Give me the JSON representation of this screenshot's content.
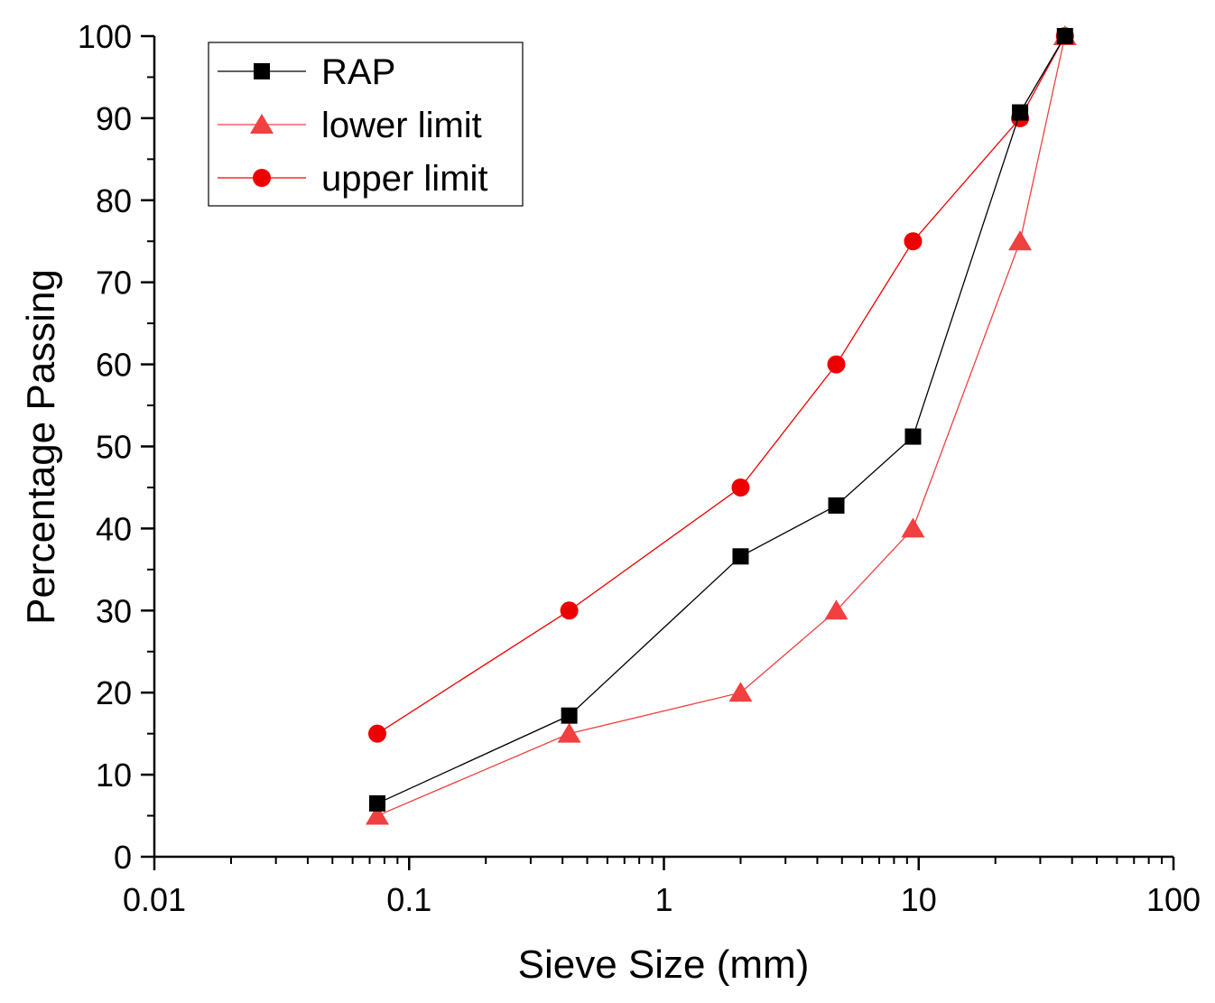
{
  "chart_data": {
    "type": "line",
    "xscale": "log",
    "xlim": [
      0.01,
      100
    ],
    "ylim": [
      0,
      100
    ],
    "xlabel": "Sieve Size (mm)",
    "ylabel": "Percentage Passing",
    "xticks": [
      {
        "value": 0.01,
        "label": "0.01"
      },
      {
        "value": 0.1,
        "label": "0.1"
      },
      {
        "value": 1,
        "label": "1"
      },
      {
        "value": 10,
        "label": "10"
      },
      {
        "value": 100,
        "label": "100"
      }
    ],
    "yticks": [
      {
        "value": 0,
        "label": "0"
      },
      {
        "value": 10,
        "label": "10"
      },
      {
        "value": 20,
        "label": "20"
      },
      {
        "value": 30,
        "label": "30"
      },
      {
        "value": 40,
        "label": "40"
      },
      {
        "value": 50,
        "label": "50"
      },
      {
        "value": 60,
        "label": "60"
      },
      {
        "value": 70,
        "label": "70"
      },
      {
        "value": 80,
        "label": "80"
      },
      {
        "value": 90,
        "label": "90"
      },
      {
        "value": 100,
        "label": "100"
      }
    ],
    "legend_position": "top-left",
    "series": [
      {
        "name": "RAP",
        "marker": "square",
        "color": "#000000",
        "x": [
          0.075,
          0.425,
          2,
          4.75,
          9.5,
          25,
          37.5
        ],
        "y": [
          6.5,
          17.2,
          36.6,
          42.8,
          51.2,
          90.7,
          100
        ]
      },
      {
        "name": "lower limit",
        "marker": "triangle",
        "color": "#f04040",
        "x": [
          0.075,
          0.425,
          2,
          4.75,
          9.5,
          25,
          37.5
        ],
        "y": [
          5,
          15,
          20,
          30,
          40,
          75,
          100
        ]
      },
      {
        "name": "upper limit",
        "marker": "circle",
        "color": "#ee0000",
        "x": [
          0.075,
          0.425,
          2,
          4.75,
          9.5,
          25,
          37.5
        ],
        "y": [
          15,
          30,
          45,
          60,
          75,
          90,
          100
        ]
      }
    ]
  }
}
